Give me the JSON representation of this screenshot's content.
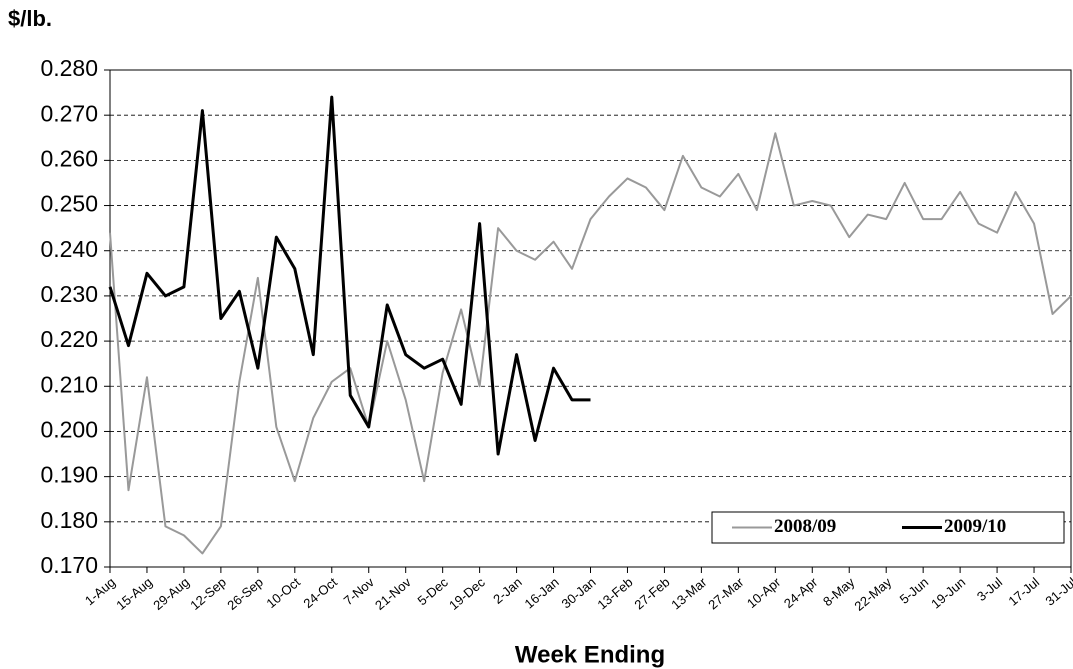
{
  "chart_data": {
    "type": "line",
    "y_label": "$/lb.",
    "x_label": "Week Ending",
    "categories": [
      "1-Aug",
      null,
      "15-Aug",
      null,
      "29-Aug",
      null,
      "12-Sep",
      null,
      "26-Sep",
      null,
      "10-Oct",
      null,
      "24-Oct",
      null,
      "7-Nov",
      null,
      "21-Nov",
      null,
      "5-Dec",
      null,
      "19-Dec",
      null,
      "2-Jan",
      null,
      "16-Jan",
      null,
      "30-Jan",
      null,
      "13-Feb",
      null,
      "27-Feb",
      null,
      "13-Mar",
      null,
      "27-Mar",
      null,
      "10-Apr",
      null,
      "24-Apr",
      null,
      "8-May",
      null,
      "22-May",
      null,
      "5-Jun",
      null,
      "19-Jun",
      null,
      "3-Jul",
      null,
      "17-Jul",
      null,
      "31-Jul"
    ],
    "series": [
      {
        "name": "2008/09",
        "color": "#999999",
        "width": 2,
        "values": [
          0.244,
          0.187,
          0.212,
          0.179,
          0.177,
          0.173,
          0.179,
          0.211,
          0.234,
          0.201,
          0.189,
          0.203,
          0.211,
          0.214,
          0.201,
          0.22,
          0.207,
          0.189,
          0.213,
          0.227,
          0.21,
          0.245,
          0.24,
          0.238,
          0.242,
          0.236,
          0.247,
          0.252,
          0.256,
          0.254,
          0.249,
          0.261,
          0.254,
          0.252,
          0.257,
          0.249,
          0.266,
          0.25,
          0.251,
          0.25,
          0.243,
          0.248,
          0.247,
          0.255,
          0.247,
          0.247,
          0.253,
          0.246,
          0.244,
          0.253,
          0.246,
          0.226,
          0.23
        ]
      },
      {
        "name": "2009/10",
        "color": "#000000",
        "width": 3,
        "values": [
          0.232,
          0.219,
          0.235,
          0.23,
          0.232,
          0.271,
          0.225,
          0.231,
          0.214,
          0.243,
          0.236,
          0.217,
          0.274,
          0.208,
          0.201,
          0.228,
          0.217,
          0.214,
          0.216,
          0.206,
          0.246,
          0.195,
          0.217,
          0.198,
          0.214,
          0.207,
          0.207,
          null,
          null,
          null,
          null,
          null,
          null,
          null,
          null,
          null,
          null,
          null,
          null,
          null,
          null,
          null,
          null,
          null,
          null,
          null,
          null,
          null,
          null,
          null,
          null,
          null,
          null
        ]
      }
    ],
    "ylim": [
      0.17,
      0.28
    ],
    "yticks": [
      {
        "value": 0.17,
        "label": "0.170"
      },
      {
        "value": 0.18,
        "label": "0.180"
      },
      {
        "value": 0.19,
        "label": "0.190"
      },
      {
        "value": 0.2,
        "label": "0.200"
      },
      {
        "value": 0.21,
        "label": "0.210"
      },
      {
        "value": 0.22,
        "label": "0.220"
      },
      {
        "value": 0.23,
        "label": "0.230"
      },
      {
        "value": 0.24,
        "label": "0.240"
      },
      {
        "value": 0.25,
        "label": "0.250"
      },
      {
        "value": 0.26,
        "label": "0.260"
      },
      {
        "value": 0.27,
        "label": "0.270"
      },
      {
        "value": 0.28,
        "label": "0.280"
      }
    ],
    "grid": true,
    "legend": "lower right"
  }
}
